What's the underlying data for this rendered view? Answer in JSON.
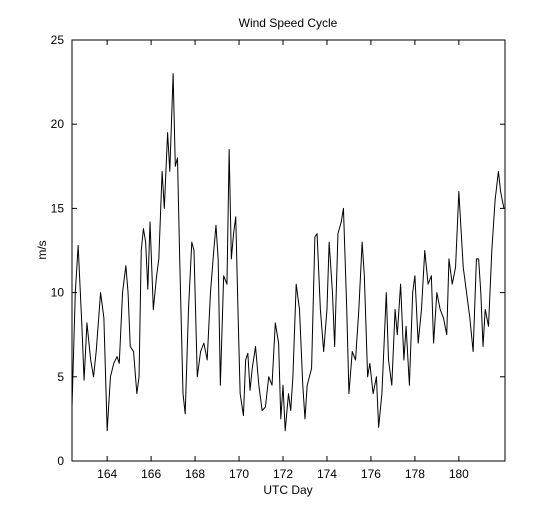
{
  "chart_data": {
    "type": "line",
    "title": "Wind Speed Cycle",
    "xlabel": "UTC Day",
    "ylabel": "m/s",
    "color": "#000000",
    "xlim": [
      162.4,
      182.1
    ],
    "ylim": [
      0,
      25
    ],
    "xticks": [
      164,
      166,
      168,
      170,
      172,
      174,
      176,
      178,
      180
    ],
    "yticks": [
      0,
      5,
      10,
      15,
      20,
      25
    ],
    "grid": false,
    "x": [
      162.4,
      162.55,
      162.68,
      162.85,
      162.95,
      163.08,
      163.25,
      163.38,
      163.5,
      163.7,
      163.85,
      164.0,
      164.15,
      164.3,
      164.45,
      164.55,
      164.7,
      164.85,
      164.95,
      165.05,
      165.2,
      165.35,
      165.45,
      165.55,
      165.65,
      165.75,
      165.85,
      165.95,
      166.1,
      166.25,
      166.35,
      166.5,
      166.6,
      166.75,
      166.85,
      167.0,
      167.1,
      167.2,
      167.3,
      167.45,
      167.55,
      167.7,
      167.85,
      167.95,
      168.1,
      168.25,
      168.4,
      168.55,
      168.7,
      168.85,
      168.95,
      169.05,
      169.15,
      169.3,
      169.45,
      169.55,
      169.65,
      169.75,
      169.85,
      169.95,
      170.05,
      170.2,
      170.3,
      170.4,
      170.5,
      170.6,
      170.75,
      170.9,
      171.05,
      171.2,
      171.35,
      171.5,
      171.65,
      171.8,
      171.9,
      172.0,
      172.1,
      172.25,
      172.35,
      172.45,
      172.6,
      172.75,
      172.9,
      173.0,
      173.1,
      173.3,
      173.45,
      173.55,
      173.7,
      173.85,
      174.0,
      174.1,
      174.25,
      174.35,
      174.5,
      174.65,
      174.75,
      174.9,
      175.0,
      175.15,
      175.3,
      175.45,
      175.6,
      175.7,
      175.85,
      175.95,
      176.1,
      176.25,
      176.35,
      176.5,
      176.7,
      176.8,
      176.95,
      177.1,
      177.2,
      177.35,
      177.5,
      177.6,
      177.75,
      177.9,
      178.0,
      178.15,
      178.3,
      178.45,
      178.6,
      178.75,
      178.85,
      179.0,
      179.15,
      179.3,
      179.45,
      179.55,
      179.7,
      179.85,
      180.0,
      180.2,
      180.35,
      180.5,
      180.65,
      180.8,
      180.9,
      181.0,
      181.1,
      181.2,
      181.35,
      181.5,
      181.65,
      181.8,
      181.9,
      182.05
    ],
    "values": [
      3.2,
      10,
      12.8,
      8,
      4.8,
      8.2,
      6,
      5,
      6.5,
      10,
      8.5,
      1.8,
      5,
      5.8,
      6.2,
      5.8,
      10,
      11.6,
      10,
      6.8,
      6.5,
      4,
      5,
      12.5,
      13.8,
      13,
      10.2,
      14.2,
      9,
      11,
      12,
      17.2,
      15,
      19.5,
      17.2,
      23,
      17.5,
      18,
      12,
      4,
      2.8,
      9,
      13,
      12.5,
      5,
      6.5,
      7,
      6,
      10,
      12.5,
      14,
      12,
      4.5,
      11,
      10.5,
      18.5,
      12,
      13.5,
      14.5,
      9,
      4,
      2.7,
      6,
      6.4,
      4.2,
      5.5,
      6.8,
      4.5,
      3,
      3.2,
      5,
      4.5,
      8.2,
      7,
      2.5,
      4.5,
      1.8,
      4,
      3,
      5,
      10.5,
      9,
      4.5,
      2.5,
      4.5,
      5.5,
      13.3,
      13.5,
      9,
      6.5,
      9,
      13,
      10,
      6.8,
      13.5,
      14.2,
      15,
      9,
      4,
      6.5,
      6,
      9,
      13,
      11,
      5,
      5.8,
      4,
      5,
      2,
      4,
      10,
      6,
      4.5,
      9,
      7.5,
      10.5,
      6,
      8,
      4.5,
      10,
      11,
      7,
      9,
      12.5,
      10.5,
      11,
      7,
      10,
      9,
      8.5,
      7.5,
      12,
      10.5,
      11.5,
      16,
      11.5,
      10,
      8.5,
      6.5,
      12,
      12,
      10,
      6.8,
      9,
      8,
      12.5,
      15.5,
      17.2,
      16,
      15
    ]
  }
}
